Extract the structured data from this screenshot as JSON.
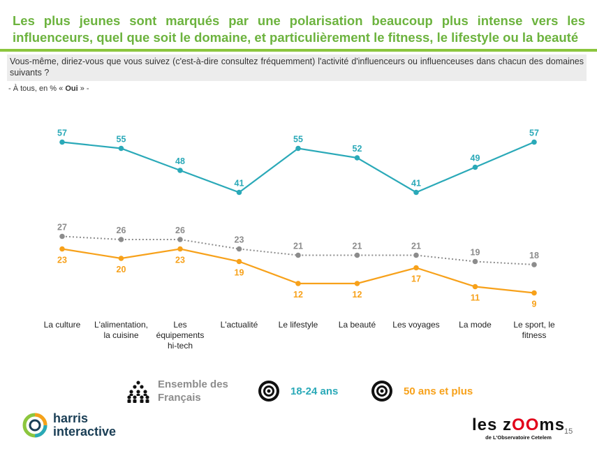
{
  "header": {
    "title": "Les plus jeunes sont marqués par une polarisation beaucoup plus intense vers les influenceurs, quel que soit le domaine, et particulièrement le fitness, le lifestyle ou la beauté",
    "question": "Vous-même, diriez-vous que vous suivez (c'est-à-dire consultez fréquemment) l'activité d'influenceurs ou influenceuses dans chacun des domaines suivants ?",
    "note_prefix": "- À tous, en % « ",
    "note_bold": "Oui",
    "note_suffix": " » -"
  },
  "chart_data": {
    "type": "line",
    "categories": [
      "La culture",
      "L'alimentation, la cuisine",
      "Les équipements hi-tech",
      "L'actualité",
      "Le lifestyle",
      "La beauté",
      "Les voyages",
      "La mode",
      "Le sport, le fitness"
    ],
    "category_lines": [
      [
        "La culture"
      ],
      [
        "L'alimentation,",
        "la cuisine"
      ],
      [
        "Les",
        "équipements",
        "hi-tech"
      ],
      [
        "L'actualité"
      ],
      [
        "Le lifestyle"
      ],
      [
        "La beauté"
      ],
      [
        "Les voyages"
      ],
      [
        "La mode"
      ],
      [
        "Le sport, le",
        "fitness"
      ]
    ],
    "series": [
      {
        "name": "18-24 ans",
        "values": [
          57,
          55,
          48,
          41,
          55,
          52,
          41,
          49,
          57
        ],
        "color": "#2aa9b8"
      },
      {
        "name": "Ensemble des Français",
        "values": [
          27,
          26,
          26,
          23,
          21,
          21,
          21,
          19,
          18
        ],
        "color": "#8c8c8c",
        "dashed": true
      },
      {
        "name": "50 ans et plus",
        "values": [
          23,
          20,
          23,
          19,
          12,
          12,
          17,
          11,
          9
        ],
        "color": "#f7a11a"
      }
    ],
    "legend_placement": "bottom",
    "grid": false
  },
  "legend": [
    {
      "label_lines": [
        "Ensemble des",
        "Français"
      ],
      "icon": "people-group-icon",
      "color": "#8c8c8c"
    },
    {
      "label_lines": [
        "18-24 ans"
      ],
      "icon": "target-icon",
      "color": "#2aa9b8"
    },
    {
      "label_lines": [
        "50 ans et plus"
      ],
      "icon": "target-icon",
      "color": "#f7a11a"
    }
  ],
  "footer": {
    "brand_line1": "harris",
    "brand_line2": "interactive",
    "zooms_prefix": "les z",
    "zooms_oo": "OO",
    "zooms_suffix": "ms",
    "zooms_sub": "de L'Observatoire Cetelem",
    "page_number": "15"
  },
  "colors": {
    "title": "#6cb33e",
    "rule": "#8cc63e",
    "teal": "#2aa9b8",
    "orange": "#f7a11a",
    "grey": "#8c8c8c"
  }
}
